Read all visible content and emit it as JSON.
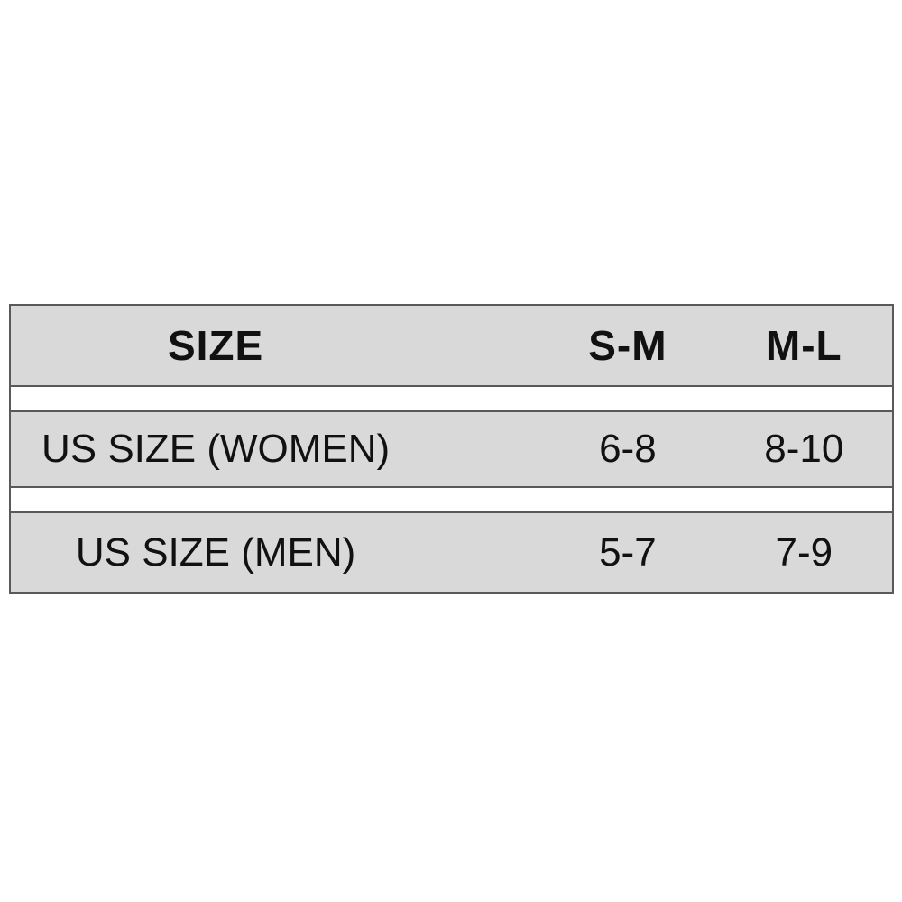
{
  "size_chart": {
    "header": [
      "SIZE",
      "S-M",
      "M-L"
    ],
    "rows": [
      [
        "US SIZE (WOMEN)",
        "6-8",
        "8-10"
      ],
      [
        "US SIZE (MEN)",
        "5-7",
        "7-9"
      ]
    ],
    "colors": {
      "band_background": "#d9d9d9",
      "border": "#595959",
      "text": "#111111",
      "page_background": "#ffffff"
    }
  },
  "chart_data": {
    "type": "table",
    "columns": [
      "SIZE",
      "S-M",
      "M-L"
    ],
    "rows": [
      [
        "US SIZE (WOMEN)",
        "6-8",
        "8-10"
      ],
      [
        "US SIZE (MEN)",
        "5-7",
        "7-9"
      ]
    ],
    "title": "",
    "notes": "Apparel size conversion chart: S-M and M-L mapped to US women's and men's sizes"
  }
}
